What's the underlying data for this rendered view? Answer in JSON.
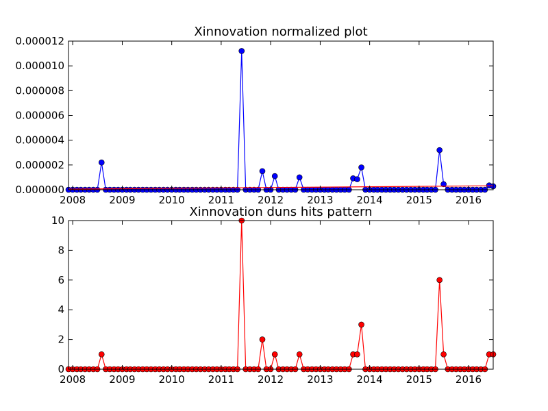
{
  "chart_data": [
    {
      "type": "line",
      "title": "Xinnovation normalized plot",
      "xlabel": "",
      "ylabel": "",
      "xlim": [
        "2007-12-01",
        "2016-07-01"
      ],
      "ylim": [
        0,
        1.2e-05
      ],
      "x_tick_labels": [
        "2008",
        "2009",
        "2010",
        "2011",
        "2012",
        "2013",
        "2014",
        "2015",
        "2016"
      ],
      "y_tick_labels": [
        "0.000000",
        "0.000002",
        "0.000004",
        "0.000006",
        "0.000008",
        "0.000010",
        "0.000012"
      ],
      "grid": false,
      "series": [
        {
          "color": "#0000ff",
          "marker": "circle",
          "points": [
            [
              "2007-12-01",
              0
            ],
            [
              "2008-01-01",
              0
            ],
            [
              "2008-02-01",
              0
            ],
            [
              "2008-03-01",
              0
            ],
            [
              "2008-04-01",
              0
            ],
            [
              "2008-05-01",
              0
            ],
            [
              "2008-06-01",
              0
            ],
            [
              "2008-07-01",
              0
            ],
            [
              "2008-08-01",
              2.2e-06
            ],
            [
              "2008-09-01",
              0
            ],
            [
              "2008-10-01",
              0
            ],
            [
              "2008-11-01",
              0
            ],
            [
              "2008-12-01",
              0
            ],
            [
              "2009-01-01",
              0
            ],
            [
              "2009-02-01",
              0
            ],
            [
              "2009-03-01",
              0
            ],
            [
              "2009-04-01",
              0
            ],
            [
              "2009-05-01",
              0
            ],
            [
              "2009-06-01",
              0
            ],
            [
              "2009-07-01",
              0
            ],
            [
              "2009-08-01",
              0
            ],
            [
              "2009-09-01",
              0
            ],
            [
              "2009-10-01",
              0
            ],
            [
              "2009-11-01",
              0
            ],
            [
              "2009-12-01",
              0
            ],
            [
              "2010-01-01",
              0
            ],
            [
              "2010-02-01",
              0
            ],
            [
              "2010-03-01",
              0
            ],
            [
              "2010-04-01",
              0
            ],
            [
              "2010-05-01",
              0
            ],
            [
              "2010-06-01",
              0
            ],
            [
              "2010-07-01",
              0
            ],
            [
              "2010-08-01",
              0
            ],
            [
              "2010-09-01",
              0
            ],
            [
              "2010-10-01",
              0
            ],
            [
              "2010-11-01",
              0
            ],
            [
              "2010-12-01",
              0
            ],
            [
              "2011-01-01",
              0
            ],
            [
              "2011-02-01",
              0
            ],
            [
              "2011-03-01",
              0
            ],
            [
              "2011-04-01",
              0
            ],
            [
              "2011-05-01",
              0
            ],
            [
              "2011-06-01",
              1.12e-05
            ],
            [
              "2011-07-01",
              0
            ],
            [
              "2011-08-01",
              0
            ],
            [
              "2011-09-01",
              0
            ],
            [
              "2011-10-01",
              0
            ],
            [
              "2011-11-01",
              1.5e-06
            ],
            [
              "2011-12-01",
              0
            ],
            [
              "2012-01-01",
              0
            ],
            [
              "2012-02-01",
              1.1e-06
            ],
            [
              "2012-03-01",
              0
            ],
            [
              "2012-04-01",
              0
            ],
            [
              "2012-05-01",
              0
            ],
            [
              "2012-06-01",
              0
            ],
            [
              "2012-07-01",
              0
            ],
            [
              "2012-08-01",
              1e-06
            ],
            [
              "2012-09-01",
              0
            ],
            [
              "2012-10-01",
              0
            ],
            [
              "2012-11-01",
              0
            ],
            [
              "2012-12-01",
              0
            ],
            [
              "2013-01-01",
              0
            ],
            [
              "2013-02-01",
              0
            ],
            [
              "2013-03-01",
              0
            ],
            [
              "2013-04-01",
              0
            ],
            [
              "2013-05-01",
              0
            ],
            [
              "2013-06-01",
              0
            ],
            [
              "2013-07-01",
              0
            ],
            [
              "2013-08-01",
              0
            ],
            [
              "2013-09-01",
              9.2e-07
            ],
            [
              "2013-10-01",
              8.5e-07
            ],
            [
              "2013-11-01",
              1.8e-06
            ],
            [
              "2013-12-01",
              0
            ],
            [
              "2014-01-01",
              0
            ],
            [
              "2014-02-01",
              0
            ],
            [
              "2014-03-01",
              0
            ],
            [
              "2014-04-01",
              0
            ],
            [
              "2014-05-01",
              0
            ],
            [
              "2014-06-01",
              0
            ],
            [
              "2014-07-01",
              0
            ],
            [
              "2014-08-01",
              0
            ],
            [
              "2014-09-01",
              0
            ],
            [
              "2014-10-01",
              0
            ],
            [
              "2014-11-01",
              0
            ],
            [
              "2014-12-01",
              0
            ],
            [
              "2015-01-01",
              0
            ],
            [
              "2015-02-01",
              0
            ],
            [
              "2015-03-01",
              0
            ],
            [
              "2015-04-01",
              0
            ],
            [
              "2015-05-01",
              0
            ],
            [
              "2015-06-01",
              3.2e-06
            ],
            [
              "2015-07-01",
              4.5e-07
            ],
            [
              "2015-08-01",
              0
            ],
            [
              "2015-09-01",
              0
            ],
            [
              "2015-10-01",
              0
            ],
            [
              "2015-11-01",
              0
            ],
            [
              "2015-12-01",
              0
            ],
            [
              "2016-01-01",
              0
            ],
            [
              "2016-02-01",
              0
            ],
            [
              "2016-03-01",
              0
            ],
            [
              "2016-04-01",
              0
            ],
            [
              "2016-05-01",
              0
            ],
            [
              "2016-06-01",
              3.5e-07
            ],
            [
              "2016-07-01",
              2.8e-07
            ]
          ]
        },
        {
          "color": "#ff0000",
          "marker": "none",
          "points": [
            [
              "2007-12-01",
              5e-08
            ],
            [
              "2016-07-01",
              3.2e-07
            ]
          ]
        }
      ]
    },
    {
      "type": "line",
      "title": "Xinnovation duns hits pattern",
      "xlabel": "",
      "ylabel": "",
      "xlim": [
        "2007-12-01",
        "2016-07-01"
      ],
      "ylim": [
        0,
        10
      ],
      "x_tick_labels": [
        "2008",
        "2009",
        "2010",
        "2011",
        "2012",
        "2013",
        "2014",
        "2015",
        "2016"
      ],
      "y_tick_labels": [
        "0",
        "2",
        "4",
        "6",
        "8",
        "10"
      ],
      "grid": false,
      "series": [
        {
          "color": "#ff0000",
          "marker": "circle",
          "points": [
            [
              "2007-12-01",
              0
            ],
            [
              "2008-01-01",
              0
            ],
            [
              "2008-02-01",
              0
            ],
            [
              "2008-03-01",
              0
            ],
            [
              "2008-04-01",
              0
            ],
            [
              "2008-05-01",
              0
            ],
            [
              "2008-06-01",
              0
            ],
            [
              "2008-07-01",
              0
            ],
            [
              "2008-08-01",
              1
            ],
            [
              "2008-09-01",
              0
            ],
            [
              "2008-10-01",
              0
            ],
            [
              "2008-11-01",
              0
            ],
            [
              "2008-12-01",
              0
            ],
            [
              "2009-01-01",
              0
            ],
            [
              "2009-02-01",
              0
            ],
            [
              "2009-03-01",
              0
            ],
            [
              "2009-04-01",
              0
            ],
            [
              "2009-05-01",
              0
            ],
            [
              "2009-06-01",
              0
            ],
            [
              "2009-07-01",
              0
            ],
            [
              "2009-08-01",
              0
            ],
            [
              "2009-09-01",
              0
            ],
            [
              "2009-10-01",
              0
            ],
            [
              "2009-11-01",
              0
            ],
            [
              "2009-12-01",
              0
            ],
            [
              "2010-01-01",
              0
            ],
            [
              "2010-02-01",
              0
            ],
            [
              "2010-03-01",
              0
            ],
            [
              "2010-04-01",
              0
            ],
            [
              "2010-05-01",
              0
            ],
            [
              "2010-06-01",
              0
            ],
            [
              "2010-07-01",
              0
            ],
            [
              "2010-08-01",
              0
            ],
            [
              "2010-09-01",
              0
            ],
            [
              "2010-10-01",
              0
            ],
            [
              "2010-11-01",
              0
            ],
            [
              "2010-12-01",
              0
            ],
            [
              "2011-01-01",
              0
            ],
            [
              "2011-02-01",
              0
            ],
            [
              "2011-03-01",
              0
            ],
            [
              "2011-04-01",
              0
            ],
            [
              "2011-05-01",
              0
            ],
            [
              "2011-06-01",
              10
            ],
            [
              "2011-07-01",
              0
            ],
            [
              "2011-08-01",
              0
            ],
            [
              "2011-09-01",
              0
            ],
            [
              "2011-10-01",
              0
            ],
            [
              "2011-11-01",
              2
            ],
            [
              "2011-12-01",
              0
            ],
            [
              "2012-01-01",
              0
            ],
            [
              "2012-02-01",
              1
            ],
            [
              "2012-03-01",
              0
            ],
            [
              "2012-04-01",
              0
            ],
            [
              "2012-05-01",
              0
            ],
            [
              "2012-06-01",
              0
            ],
            [
              "2012-07-01",
              0
            ],
            [
              "2012-08-01",
              1
            ],
            [
              "2012-09-01",
              0
            ],
            [
              "2012-10-01",
              0
            ],
            [
              "2012-11-01",
              0
            ],
            [
              "2012-12-01",
              0
            ],
            [
              "2013-01-01",
              0
            ],
            [
              "2013-02-01",
              0
            ],
            [
              "2013-03-01",
              0
            ],
            [
              "2013-04-01",
              0
            ],
            [
              "2013-05-01",
              0
            ],
            [
              "2013-06-01",
              0
            ],
            [
              "2013-07-01",
              0
            ],
            [
              "2013-08-01",
              0
            ],
            [
              "2013-09-01",
              1
            ],
            [
              "2013-10-01",
              1
            ],
            [
              "2013-11-01",
              3
            ],
            [
              "2013-12-01",
              0
            ],
            [
              "2014-01-01",
              0
            ],
            [
              "2014-02-01",
              0
            ],
            [
              "2014-03-01",
              0
            ],
            [
              "2014-04-01",
              0
            ],
            [
              "2014-05-01",
              0
            ],
            [
              "2014-06-01",
              0
            ],
            [
              "2014-07-01",
              0
            ],
            [
              "2014-08-01",
              0
            ],
            [
              "2014-09-01",
              0
            ],
            [
              "2014-10-01",
              0
            ],
            [
              "2014-11-01",
              0
            ],
            [
              "2014-12-01",
              0
            ],
            [
              "2015-01-01",
              0
            ],
            [
              "2015-02-01",
              0
            ],
            [
              "2015-03-01",
              0
            ],
            [
              "2015-04-01",
              0
            ],
            [
              "2015-05-01",
              0
            ],
            [
              "2015-06-01",
              6
            ],
            [
              "2015-07-01",
              1
            ],
            [
              "2015-08-01",
              0
            ],
            [
              "2015-09-01",
              0
            ],
            [
              "2015-10-01",
              0
            ],
            [
              "2015-11-01",
              0
            ],
            [
              "2015-12-01",
              0
            ],
            [
              "2016-01-01",
              0
            ],
            [
              "2016-02-01",
              0
            ],
            [
              "2016-03-01",
              0
            ],
            [
              "2016-04-01",
              0
            ],
            [
              "2016-05-01",
              0
            ],
            [
              "2016-06-01",
              1
            ],
            [
              "2016-07-01",
              1
            ]
          ]
        }
      ]
    }
  ]
}
